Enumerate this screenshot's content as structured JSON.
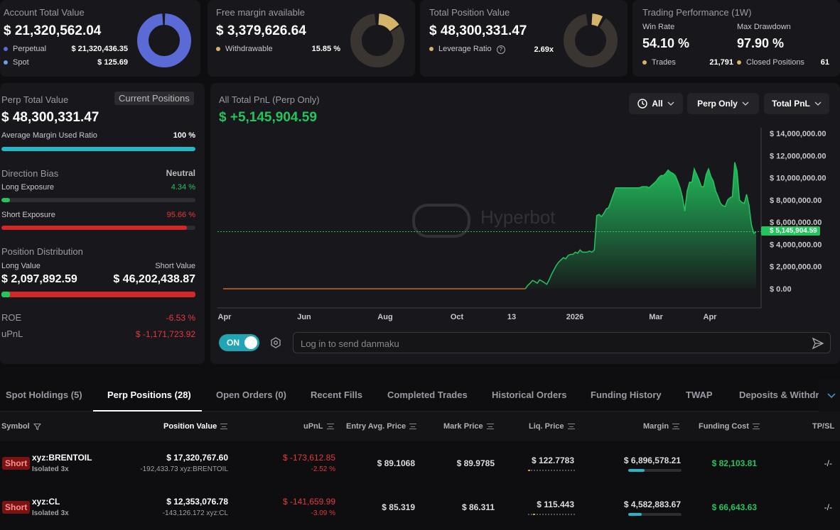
{
  "account": {
    "title": "Account Total Value",
    "value": "$ 21,320,562.04",
    "perp_label": "Perpetual",
    "perp_value": "$ 21,320,436.35",
    "spot_label": "Spot",
    "spot_value": "$ 125.69",
    "perp_color": "#5b6bd6",
    "spot_color": "#6a9ee0"
  },
  "margin": {
    "title": "Free margin available",
    "value": "$ 3,379,626.64",
    "withdraw_label": "Withdrawable",
    "withdraw_value": "15.85 %",
    "withdraw_fraction": 0.1585
  },
  "position": {
    "title": "Total Position Value",
    "value": "$ 48,300,331.47",
    "lev_label": "Leverage Ratio",
    "lev_value": "2.69x"
  },
  "performance": {
    "title": "Trading Performance (1W)",
    "winrate_label": "Win Rate",
    "winrate_value": "54.10 %",
    "drawdown_label": "Max Drawdown",
    "drawdown_value": "97.90 %",
    "trades_label": "Trades",
    "trades_value": "21,791",
    "closed_label": "Closed Positions",
    "closed_value": "61"
  },
  "left": {
    "perp_title": "Perp Total Value",
    "current_btn": "Current Positions",
    "perp_value": "$ 48,300,331.47",
    "margin_label": "Average Margin Used Ratio",
    "margin_value": "100 %",
    "margin_fraction": 1.0,
    "bias_label": "Direction Bias",
    "bias_value": "Neutral",
    "long_label": "Long Exposure",
    "long_value": "4.34 %",
    "long_fraction": 0.0434,
    "short_label": "Short Exposure",
    "short_value": "95.66 %",
    "short_fraction": 0.9566,
    "dist_label": "Position Distribution",
    "longv_label": "Long Value",
    "shortv_label": "Short Value",
    "longv_value": "$ 2,097,892.59",
    "shortv_value": "$ 46,202,438.87",
    "roe_label": "ROE",
    "roe_value": "-6.53 %",
    "upnl_label": "uPnL",
    "upnl_value": "$ -1,171,723.92"
  },
  "chart": {
    "title": "All Total PnL (Perp Only)",
    "value": "$ +5,145,904.59",
    "range_btn": "All",
    "scope_btn": "Perp Only",
    "metric_btn": "Total PnL",
    "watermark": "Hyperbot",
    "current_label": "$ 5,145,904.59",
    "toggle_label": "ON",
    "danmaku_placeholder": "Log in to send danmaku"
  },
  "chart_data": {
    "type": "area",
    "title": "All Total PnL (Perp Only)",
    "x_ticks": [
      "Apr",
      "Jun",
      "Aug",
      "Oct",
      "13",
      "2026",
      "Mar",
      "Apr"
    ],
    "y_ticks": [
      "$ 14,000,000.00",
      "$ 12,000,000.00",
      "$ 10,000,000.00",
      "$ 8,000,000.00",
      "$ 6,000,000.00",
      "$ 4,000,000.00",
      "$ 2,000,000.00",
      "$ 0.00"
    ],
    "ylim": [
      0,
      14000000
    ],
    "current": 5145904.59,
    "colors": {
      "positive": "#22c55e",
      "pre": "#c86a2a"
    },
    "values": [
      0,
      0,
      0,
      0,
      0,
      0,
      0,
      0,
      0,
      0,
      0,
      0,
      0,
      0,
      0,
      0,
      0,
      0,
      0,
      0,
      0,
      0,
      0,
      0,
      0,
      0,
      0,
      0,
      0,
      0,
      0,
      0,
      0,
      0,
      0,
      0,
      0,
      0,
      0,
      0,
      0,
      0,
      0,
      0,
      0,
      0,
      0,
      0,
      0,
      0,
      0,
      0,
      0,
      0,
      0,
      0,
      0,
      0,
      0,
      0,
      0,
      0,
      0,
      0,
      0,
      0,
      0,
      0,
      0,
      0,
      0,
      0,
      0,
      0,
      0,
      0,
      0,
      0,
      0,
      0,
      0,
      0,
      0,
      0,
      0,
      0,
      0,
      0,
      0,
      0,
      0,
      0,
      0,
      0,
      0,
      0,
      0,
      0,
      0,
      0,
      0,
      0,
      0,
      0,
      0,
      0,
      0,
      0,
      0,
      0,
      0,
      0,
      0,
      0,
      0,
      0,
      0,
      0,
      0,
      0,
      0,
      0,
      0,
      0,
      0,
      0,
      0,
      0,
      300000,
      500000,
      750000,
      650000,
      500000,
      800000,
      700000,
      550000,
      400000,
      800000,
      1300000,
      1700000,
      2100000,
      2400000,
      2600000,
      2800000,
      2700000,
      3000000,
      3100000,
      3100000,
      3300000,
      3200000,
      3500000,
      3300000,
      3300000,
      3300000,
      3400000,
      3300000,
      3500000,
      6600000,
      6700000,
      6500000,
      6800000,
      7200000,
      7300000,
      7900000,
      8500000,
      9100000,
      9100000,
      9100000,
      9100000,
      9100000,
      9100000,
      9100000,
      9100000,
      9100000,
      9100000,
      9100000,
      9200000,
      9200000,
      9200000,
      9100000,
      9300000,
      9500000,
      9700000,
      10000000,
      10200000,
      10200000,
      10400000,
      10700000,
      10500000,
      10400000,
      10200000,
      9700000,
      9100000,
      8300000,
      7000000,
      8800000,
      9600000,
      9600000,
      10800000,
      10300000,
      9800000,
      9200000,
      9200000,
      10300000,
      10800000,
      10100000,
      9700000,
      8800000,
      8300000,
      7700000,
      7500000,
      7400000,
      8000000,
      8200000,
      8300000,
      11400000,
      10600000,
      8000000,
      7800000,
      7700000,
      8500000,
      7500000,
      5800000,
      5000000,
      5145904.59
    ]
  },
  "tabs": [
    "Spot Holdings (5)",
    "Perp Positions (28)",
    "Open Orders (0)",
    "Recent Fills",
    "Completed Trades",
    "Historical Orders",
    "Funding History",
    "TWAP",
    "Deposits & Withdra"
  ],
  "table": {
    "headers": [
      "Symbol",
      "Position Value",
      "uPnL",
      "Entry Avg. Price",
      "Mark Price",
      "Liq. Price",
      "Margin",
      "Funding Cost",
      "TP/SL"
    ],
    "rows": [
      {
        "side": "Short",
        "symbol": "xyz:BRENTOIL",
        "mode": "Isolated 3x",
        "value": "$ 17,320,767.60",
        "size": "-192,433.73 xyz:BRENTOIL",
        "upnl": "$ -173,612.85",
        "upnl_pct": "-2.52 %",
        "entry": "$ 89.1068",
        "mark": "$ 89.9785",
        "liq": "$ 122.7783",
        "margin": "$ 6,896,578.21",
        "margin_fraction": 0.3,
        "funding": "$ 82,103.81",
        "tpsl": "-/-"
      },
      {
        "side": "Short",
        "symbol": "xyz:CL",
        "mode": "Isolated 3x",
        "value": "$ 12,353,076.78",
        "size": "-143,126.172 xyz:CL",
        "upnl": "$ -141,659.99",
        "upnl_pct": "-3.09 %",
        "entry": "$ 85.319",
        "mark": "$ 86.311",
        "liq": "$ 115.443",
        "margin": "$ 4,582,883.67",
        "margin_fraction": 0.25,
        "funding": "$ 66,643.63",
        "tpsl": "-/-"
      }
    ]
  }
}
